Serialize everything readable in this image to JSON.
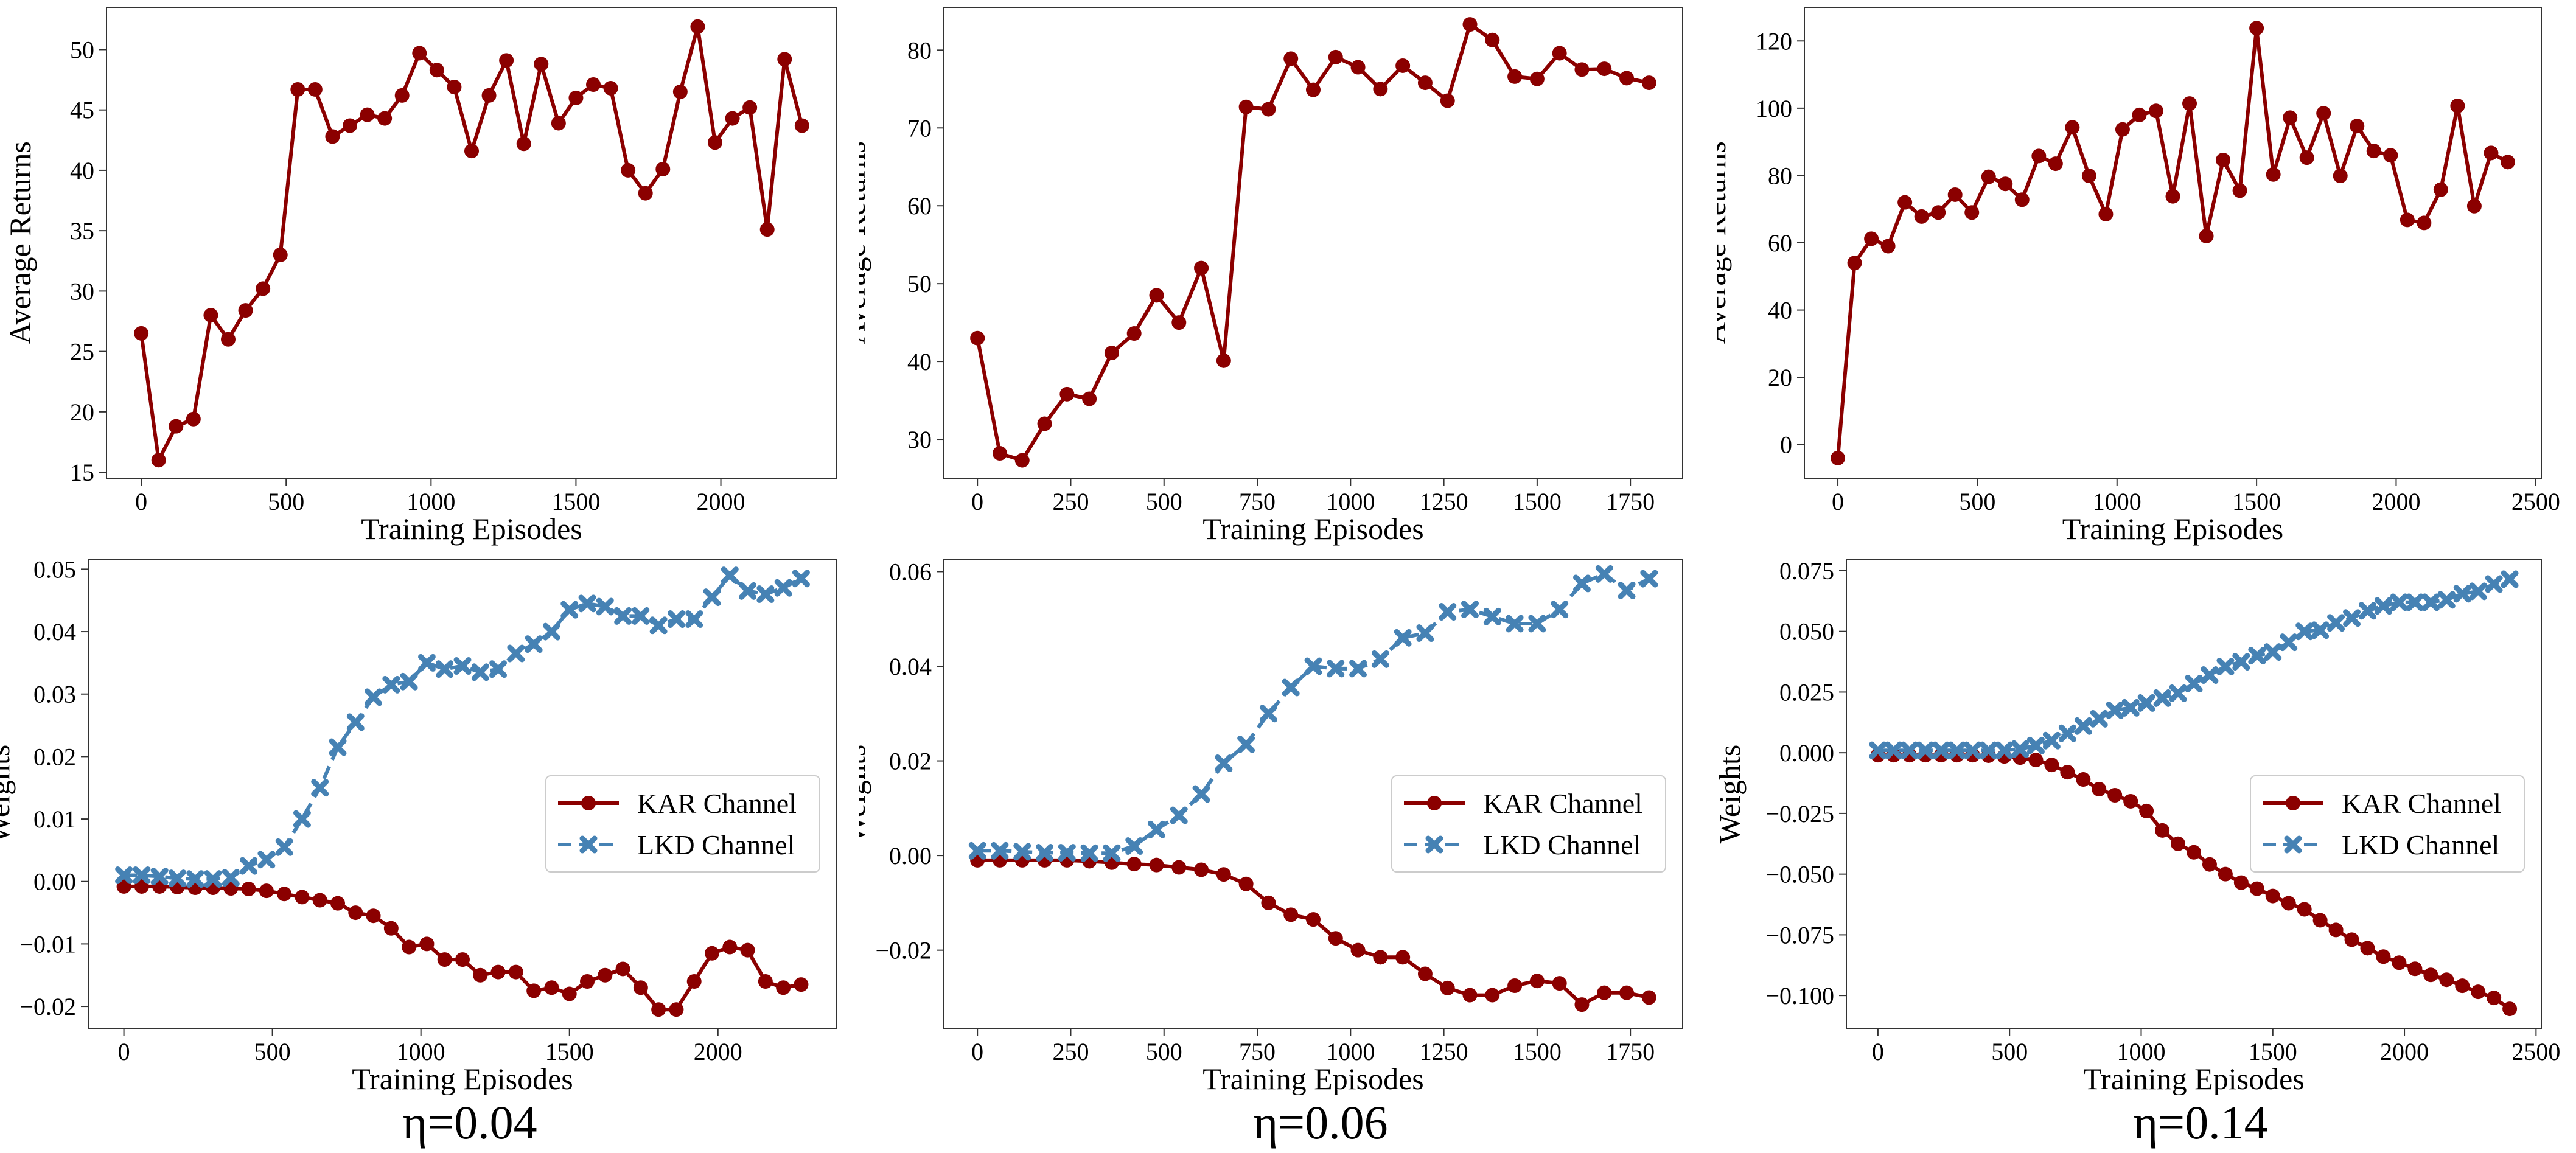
{
  "colors": {
    "kar": "#8b0000",
    "lkd": "#4682b4",
    "axis": "#333333"
  },
  "panel_labels": [
    "η=0.04",
    "η=0.06",
    "η=0.14"
  ],
  "chart_data": [
    {
      "type": "line",
      "xlabel": "Training Episodes",
      "ylabel": "Average Returns",
      "xlim": [
        -120,
        2400
      ],
      "ylim": [
        14.5,
        53.5
      ],
      "xticks": [
        0,
        500,
        1000,
        1500,
        2000
      ],
      "yticks": [
        15,
        20,
        25,
        30,
        35,
        40,
        45,
        50
      ],
      "x": [
        0,
        60,
        120,
        180,
        240,
        300,
        360,
        420,
        480,
        540,
        600,
        660,
        720,
        780,
        840,
        900,
        960,
        1020,
        1080,
        1140,
        1200,
        1260,
        1320,
        1380,
        1440,
        1500,
        1560,
        1620,
        1680,
        1740,
        1800,
        1860,
        1920,
        1980,
        2040,
        2100,
        2160,
        2220,
        2280
      ],
      "series": [
        {
          "values": [
            26.5,
            16.0,
            18.8,
            19.4,
            28.0,
            26.0,
            28.4,
            30.2,
            33.0,
            46.7,
            46.7,
            42.8,
            43.7,
            44.6,
            44.3,
            46.2,
            49.7,
            48.3,
            46.9,
            41.6,
            46.2,
            49.1,
            42.2,
            48.8,
            43.9,
            46.0,
            47.1,
            46.8,
            40.0,
            38.1,
            40.1,
            46.5,
            51.9,
            42.3,
            44.3,
            45.2,
            35.1,
            49.2,
            43.7
          ],
          "marker": "circle",
          "dashed": false,
          "color_key": "kar"
        }
      ],
      "legend": false,
      "grid": false
    },
    {
      "type": "line",
      "xlabel": "Training Episodes",
      "ylabel": "Average Returns",
      "xlim": [
        -90,
        1890
      ],
      "ylim": [
        25.0,
        85.5
      ],
      "xticks": [
        0,
        250,
        500,
        750,
        1000,
        1250,
        1500,
        1750
      ],
      "yticks": [
        30,
        40,
        50,
        60,
        70,
        80
      ],
      "x": [
        0,
        60,
        120,
        180,
        240,
        300,
        360,
        420,
        480,
        540,
        600,
        660,
        720,
        780,
        840,
        900,
        960,
        1020,
        1080,
        1140,
        1200,
        1260,
        1320,
        1380,
        1440,
        1500,
        1560,
        1620,
        1680,
        1740,
        1800
      ],
      "series": [
        {
          "values": [
            43.0,
            28.2,
            27.3,
            32.0,
            35.8,
            35.2,
            41.1,
            43.6,
            48.5,
            45.0,
            52.0,
            40.1,
            72.7,
            72.4,
            78.9,
            74.9,
            79.1,
            77.8,
            75.0,
            78.0,
            75.8,
            73.5,
            83.3,
            81.3,
            76.6,
            76.3,
            79.6,
            77.5,
            77.6,
            76.4,
            75.8
          ],
          "marker": "circle",
          "dashed": false,
          "color_key": "kar"
        }
      ],
      "legend": false,
      "grid": false
    },
    {
      "type": "line",
      "xlabel": "Training Episodes",
      "ylabel": "Average Returns",
      "xlim": [
        -120,
        2520
      ],
      "ylim": [
        -10.0,
        130.0
      ],
      "xticks": [
        0,
        500,
        1000,
        1500,
        2000,
        2500
      ],
      "yticks": [
        0,
        20,
        40,
        60,
        80,
        100,
        120
      ],
      "x": [
        0,
        60,
        120,
        180,
        240,
        300,
        360,
        420,
        480,
        540,
        600,
        660,
        720,
        780,
        840,
        900,
        960,
        1020,
        1080,
        1140,
        1200,
        1260,
        1320,
        1380,
        1440,
        1500,
        1560,
        1620,
        1680,
        1740,
        1800,
        1860,
        1920,
        1980,
        2040,
        2100,
        2160,
        2220,
        2280,
        2340,
        2400
      ],
      "series": [
        {
          "values": [
            -4.0,
            54.0,
            61.2,
            59.0,
            72.0,
            67.8,
            69.0,
            74.3,
            69.0,
            79.6,
            77.5,
            72.8,
            85.8,
            83.5,
            94.3,
            79.9,
            68.5,
            93.7,
            98.0,
            99.2,
            73.8,
            101.4,
            62.0,
            84.6,
            75.5,
            123.8,
            80.3,
            97.2,
            85.3,
            98.5,
            79.9,
            94.7,
            87.3,
            86.0,
            66.8,
            65.9,
            75.8,
            100.7,
            70.9,
            86.7,
            84.0
          ],
          "marker": "circle",
          "dashed": false,
          "color_key": "kar"
        }
      ],
      "legend": false,
      "grid": false
    },
    {
      "type": "line",
      "xlabel": "Training Episodes",
      "ylabel": "Weights",
      "xlim": [
        -120,
        2400
      ],
      "ylim": [
        -0.0235,
        0.0515
      ],
      "xticks": [
        0,
        500,
        1000,
        1500,
        2000
      ],
      "yticks": [
        -0.02,
        -0.01,
        0.0,
        0.01,
        0.02,
        0.03,
        0.04,
        0.05
      ],
      "ytick_labels": [
        "−0.02",
        "−0.01",
        "0.00",
        "0.01",
        "0.02",
        "0.03",
        "0.04",
        "0.05"
      ],
      "x": [
        0,
        60,
        120,
        180,
        240,
        300,
        360,
        420,
        480,
        540,
        600,
        660,
        720,
        780,
        840,
        900,
        960,
        1020,
        1080,
        1140,
        1200,
        1260,
        1320,
        1380,
        1440,
        1500,
        1560,
        1620,
        1680,
        1740,
        1800,
        1860,
        1920,
        1980,
        2040,
        2100,
        2160,
        2220,
        2280
      ],
      "series": [
        {
          "name": "KAR Channel",
          "values": [
            -0.0008,
            -0.0008,
            -0.0008,
            -0.0009,
            -0.001,
            -0.001,
            -0.0011,
            -0.0012,
            -0.0015,
            -0.002,
            -0.0025,
            -0.003,
            -0.0035,
            -0.005,
            -0.0055,
            -0.0075,
            -0.0105,
            -0.01,
            -0.0125,
            -0.0125,
            -0.015,
            -0.0145,
            -0.0145,
            -0.0175,
            -0.017,
            -0.018,
            -0.016,
            -0.015,
            -0.014,
            -0.017,
            -0.0205,
            -0.0205,
            -0.016,
            -0.0115,
            -0.0105,
            -0.011,
            -0.016,
            -0.017,
            -0.0165
          ],
          "marker": "circle",
          "dashed": false,
          "color_key": "kar"
        },
        {
          "name": "LKD Channel",
          "values": [
            0.001,
            0.001,
            0.0008,
            0.0005,
            0.0004,
            0.0004,
            0.0006,
            0.0025,
            0.0035,
            0.0055,
            0.01,
            0.015,
            0.0215,
            0.0255,
            0.0295,
            0.0315,
            0.032,
            0.035,
            0.034,
            0.0345,
            0.0335,
            0.034,
            0.0365,
            0.038,
            0.04,
            0.0435,
            0.0445,
            0.044,
            0.0425,
            0.0425,
            0.041,
            0.042,
            0.042,
            0.0455,
            0.049,
            0.0465,
            0.046,
            0.047,
            0.0485
          ],
          "marker": "x",
          "dashed": true,
          "color_key": "lkd"
        }
      ],
      "legend": true,
      "legend_position": "center-right",
      "grid": false
    },
    {
      "type": "line",
      "xlabel": "Training Episodes",
      "ylabel": "Weights",
      "xlim": [
        -90,
        1890
      ],
      "ylim": [
        -0.0365,
        0.0625
      ],
      "xticks": [
        0,
        250,
        500,
        750,
        1000,
        1250,
        1500,
        1750
      ],
      "yticks": [
        -0.02,
        0.0,
        0.02,
        0.04,
        0.06
      ],
      "ytick_labels": [
        "−0.02",
        "0.00",
        "0.02",
        "0.04",
        "0.06"
      ],
      "x": [
        0,
        60,
        120,
        180,
        240,
        300,
        360,
        420,
        480,
        540,
        600,
        660,
        720,
        780,
        840,
        900,
        960,
        1020,
        1080,
        1140,
        1200,
        1260,
        1320,
        1380,
        1440,
        1500,
        1560,
        1620,
        1680,
        1740,
        1800
      ],
      "series": [
        {
          "name": "KAR Channel",
          "values": [
            -0.001,
            -0.001,
            -0.001,
            -0.001,
            -0.001,
            -0.0012,
            -0.0015,
            -0.0018,
            -0.002,
            -0.0025,
            -0.003,
            -0.004,
            -0.006,
            -0.01,
            -0.0125,
            -0.0135,
            -0.0175,
            -0.02,
            -0.0215,
            -0.0215,
            -0.025,
            -0.028,
            -0.0295,
            -0.0295,
            -0.0275,
            -0.0265,
            -0.027,
            -0.0315,
            -0.029,
            -0.029,
            -0.03
          ],
          "marker": "circle",
          "dashed": false,
          "color_key": "kar"
        },
        {
          "name": "LKD Channel",
          "values": [
            0.001,
            0.001,
            0.0008,
            0.0006,
            0.0006,
            0.0005,
            0.0005,
            0.002,
            0.0055,
            0.0085,
            0.013,
            0.0195,
            0.0235,
            0.03,
            0.0355,
            0.04,
            0.0395,
            0.0395,
            0.0415,
            0.046,
            0.047,
            0.0515,
            0.052,
            0.0505,
            0.049,
            0.049,
            0.052,
            0.0575,
            0.0595,
            0.056,
            0.0585
          ],
          "marker": "x",
          "dashed": true,
          "color_key": "lkd"
        }
      ],
      "legend": true,
      "legend_position": "center-right",
      "grid": false
    },
    {
      "type": "line",
      "xlabel": "Training Episodes",
      "ylabel": "Weights",
      "xlim": [
        -120,
        2520
      ],
      "ylim": [
        -0.1135,
        0.0795
      ],
      "xticks": [
        0,
        500,
        1000,
        1500,
        2000,
        2500
      ],
      "yticks": [
        -0.1,
        -0.075,
        -0.05,
        -0.025,
        0.0,
        0.025,
        0.05,
        0.075
      ],
      "ytick_labels": [
        "−0.100",
        "−0.075",
        "−0.050",
        "−0.025",
        "0.000",
        "0.025",
        "0.050",
        "0.075"
      ],
      "x": [
        0,
        60,
        120,
        180,
        240,
        300,
        360,
        420,
        480,
        540,
        600,
        660,
        720,
        780,
        840,
        900,
        960,
        1020,
        1080,
        1140,
        1200,
        1260,
        1320,
        1380,
        1440,
        1500,
        1560,
        1620,
        1680,
        1740,
        1800,
        1860,
        1920,
        1980,
        2040,
        2100,
        2160,
        2220,
        2280,
        2340,
        2400
      ],
      "series": [
        {
          "name": "KAR Channel",
          "values": [
            -0.001,
            -0.001,
            -0.001,
            -0.001,
            -0.001,
            -0.001,
            -0.001,
            -0.0012,
            -0.0015,
            -0.002,
            -0.003,
            -0.005,
            -0.008,
            -0.011,
            -0.015,
            -0.0175,
            -0.02,
            -0.024,
            -0.032,
            -0.0375,
            -0.041,
            -0.046,
            -0.05,
            -0.0535,
            -0.056,
            -0.059,
            -0.062,
            -0.0645,
            -0.069,
            -0.073,
            -0.077,
            -0.0805,
            -0.084,
            -0.0865,
            -0.089,
            -0.0915,
            -0.0935,
            -0.096,
            -0.0985,
            -0.101,
            -0.1055
          ],
          "marker": "circle",
          "dashed": false,
          "color_key": "kar"
        },
        {
          "name": "LKD Channel",
          "values": [
            0.001,
            0.001,
            0.001,
            0.001,
            0.001,
            0.001,
            0.001,
            0.001,
            0.001,
            0.0015,
            0.003,
            0.005,
            0.008,
            0.011,
            0.014,
            0.0175,
            0.0185,
            0.0205,
            0.0225,
            0.0245,
            0.0285,
            0.032,
            0.0355,
            0.0375,
            0.04,
            0.0415,
            0.0455,
            0.05,
            0.0505,
            0.0535,
            0.0555,
            0.0585,
            0.0605,
            0.062,
            0.062,
            0.062,
            0.063,
            0.0655,
            0.0665,
            0.0695,
            0.0715
          ],
          "marker": "x",
          "dashed": true,
          "color_key": "lkd"
        }
      ],
      "legend": true,
      "legend_position": "center-right",
      "grid": false
    }
  ]
}
